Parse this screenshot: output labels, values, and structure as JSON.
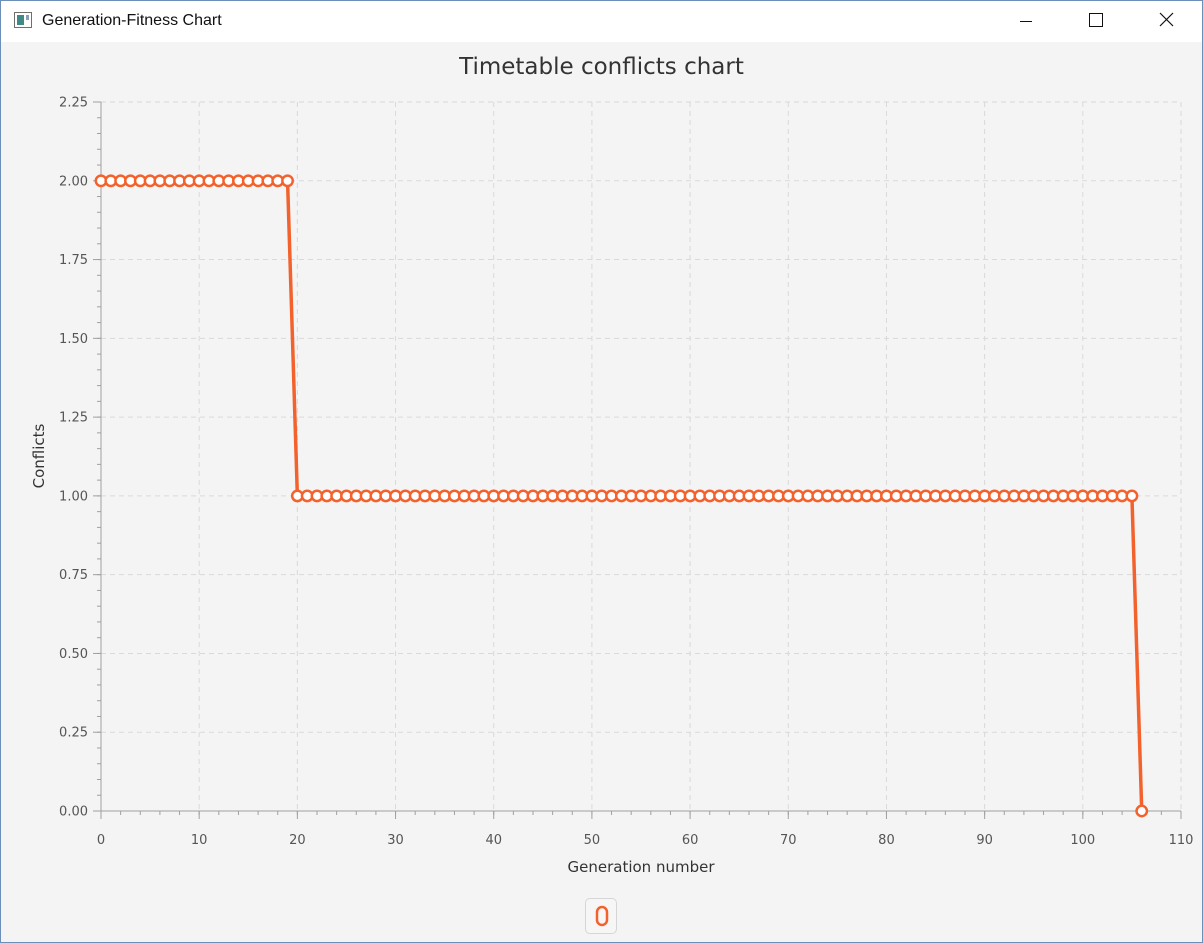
{
  "window": {
    "title": "Generation-Fitness Chart",
    "minimize_icon": "minimize-icon",
    "maximize_icon": "maximize-icon",
    "close_icon": "close-icon"
  },
  "colors": {
    "series": "#f3622d",
    "grid": "#d9d9d9",
    "axis": "#a0a0a0",
    "tick_text": "#555555",
    "background": "#f4f4f4"
  },
  "chart_data": {
    "type": "line",
    "title": "Timetable conflicts chart",
    "xlabel": "Generation number",
    "ylabel": "Conflicts",
    "xlim": [
      0,
      110
    ],
    "ylim": [
      0,
      2.25
    ],
    "x_major_step": 10,
    "x_minor_step": 2,
    "y_major_step": 0.25,
    "y_minor_step": 0.05,
    "x_tick_labels": [
      "0",
      "10",
      "20",
      "30",
      "40",
      "50",
      "60",
      "70",
      "80",
      "90",
      "100",
      "110"
    ],
    "y_tick_labels": [
      "0.00",
      "0.25",
      "0.50",
      "0.75",
      "1.00",
      "1.25",
      "1.50",
      "1.75",
      "2.00",
      "2.25"
    ],
    "grid": true,
    "legend": "bottom-center",
    "series": [
      {
        "name": "",
        "x": [
          0,
          1,
          2,
          3,
          4,
          5,
          6,
          7,
          8,
          9,
          10,
          11,
          12,
          13,
          14,
          15,
          16,
          17,
          18,
          19,
          20,
          21,
          22,
          23,
          24,
          25,
          26,
          27,
          28,
          29,
          30,
          31,
          32,
          33,
          34,
          35,
          36,
          37,
          38,
          39,
          40,
          41,
          42,
          43,
          44,
          45,
          46,
          47,
          48,
          49,
          50,
          51,
          52,
          53,
          54,
          55,
          56,
          57,
          58,
          59,
          60,
          61,
          62,
          63,
          64,
          65,
          66,
          67,
          68,
          69,
          70,
          71,
          72,
          73,
          74,
          75,
          76,
          77,
          78,
          79,
          80,
          81,
          82,
          83,
          84,
          85,
          86,
          87,
          88,
          89,
          90,
          91,
          92,
          93,
          94,
          95,
          96,
          97,
          98,
          99,
          100,
          101,
          102,
          103,
          104,
          105,
          106
        ],
        "y": [
          2,
          2,
          2,
          2,
          2,
          2,
          2,
          2,
          2,
          2,
          2,
          2,
          2,
          2,
          2,
          2,
          2,
          2,
          2,
          2,
          1,
          1,
          1,
          1,
          1,
          1,
          1,
          1,
          1,
          1,
          1,
          1,
          1,
          1,
          1,
          1,
          1,
          1,
          1,
          1,
          1,
          1,
          1,
          1,
          1,
          1,
          1,
          1,
          1,
          1,
          1,
          1,
          1,
          1,
          1,
          1,
          1,
          1,
          1,
          1,
          1,
          1,
          1,
          1,
          1,
          1,
          1,
          1,
          1,
          1,
          1,
          1,
          1,
          1,
          1,
          1,
          1,
          1,
          1,
          1,
          1,
          1,
          1,
          1,
          1,
          1,
          1,
          1,
          1,
          1,
          1,
          1,
          1,
          1,
          1,
          1,
          1,
          1,
          1,
          1,
          1,
          1,
          1,
          1,
          1,
          1,
          0
        ]
      }
    ]
  },
  "legend_symbol": "0"
}
